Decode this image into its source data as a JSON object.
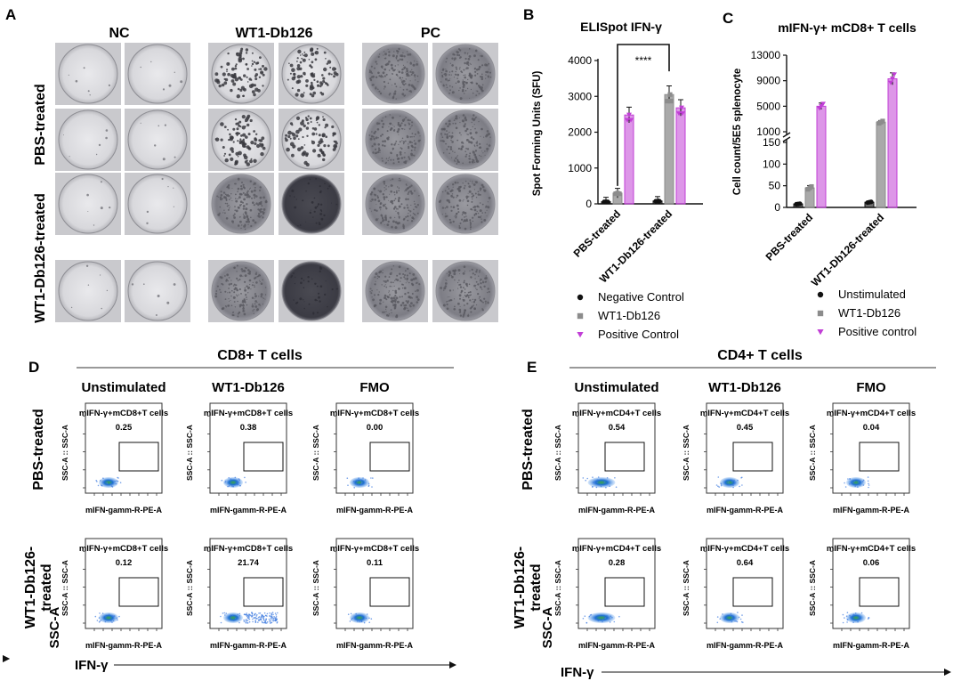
{
  "panels": {
    "A": {
      "letter": "A",
      "columns": [
        "NC",
        "WT1-Db126",
        "PC"
      ],
      "rows": [
        "PBS-treated",
        "WT1-Db126-treated"
      ]
    },
    "B": {
      "letter": "B",
      "title": "ELISpot IFN-γ",
      "significance": "****"
    },
    "C": {
      "letter": "C",
      "title": "mIFN-γ+ mCD8+ T cells"
    },
    "D": {
      "letter": "D",
      "cell_type": "CD8+ T cells",
      "columns": [
        "Unstimulated",
        "WT1-Db126",
        "FMO"
      ],
      "rows": [
        "PBS-treated",
        "WT1-Db126-\ntreated"
      ],
      "y_axis": "SSC-A",
      "x_axis": "IFN-γ",
      "gate_name": "mIFN-γ+mCD8+T cells",
      "plot_xlabel": "mIFN-gamm-R-PE-A",
      "plot_ylabel": "SSC-A :: SSC-A",
      "values": [
        [
          "0.25",
          "0.38",
          "0.00"
        ],
        [
          "0.12",
          "21.74",
          "0.11"
        ]
      ]
    },
    "E": {
      "letter": "E",
      "cell_type": "CD4+ T cells",
      "columns": [
        "Unstimulated",
        "WT1-Db126",
        "FMO"
      ],
      "rows": [
        "PBS-treated",
        "WT1-Db126-\ntreated"
      ],
      "y_axis": "SSC-A",
      "x_axis": "IFN-γ",
      "gate_name": "mIFN-γ+mCD4+T cells",
      "plot_xlabel": "mIFN-gamm-R-PE-A",
      "plot_ylabel": "SSC-A :: SSC-A",
      "values": [
        [
          "0.54",
          "0.45",
          "0.04"
        ],
        [
          "0.28",
          "0.64",
          "0.06"
        ]
      ]
    }
  },
  "chart_data": [
    {
      "id": "B",
      "type": "bar",
      "title": "ELISpot IFN-γ",
      "ylabel": "Spot Forming Units (SFU)",
      "xlabel": "",
      "categories": [
        "PBS-treated",
        "WT1-Db126-treated"
      ],
      "ylim": [
        0,
        4000
      ],
      "yticks": [
        0,
        1000,
        2000,
        3000,
        4000
      ],
      "series": [
        {
          "name": "Negative Control",
          "color": "#111111",
          "values": [
            60,
            80
          ]
        },
        {
          "name": "WT1-Db126",
          "color": "#8c8c8c",
          "values": [
            300,
            3050
          ]
        },
        {
          "name": "Positive Control",
          "color": "#c13fd6",
          "values": [
            2480,
            2680
          ]
        }
      ],
      "legend": "bottom",
      "annotation": "****"
    },
    {
      "id": "C",
      "type": "bar",
      "title": "mIFN-γ+ mCD8+ T cells",
      "ylabel": "Cell count/5E5 splenocyte",
      "xlabel": "",
      "categories": [
        "PBS-treated",
        "WT1-Db126-treated"
      ],
      "axis_break": true,
      "lower_ylim": [
        0,
        150
      ],
      "lower_yticks": [
        0,
        50,
        100,
        150
      ],
      "upper_ylim": [
        1000,
        13000
      ],
      "upper_yticks": [
        1000,
        5000,
        9000,
        13000
      ],
      "series": [
        {
          "name": "Unstimulated",
          "color": "#111111",
          "values": [
            8,
            12
          ]
        },
        {
          "name": "WT1-Db126",
          "color": "#8c8c8c",
          "values": [
            45,
            2500
          ]
        },
        {
          "name": "Positive control",
          "color": "#c13fd6",
          "values": [
            5000,
            9300
          ]
        }
      ],
      "legend": "bottom"
    }
  ]
}
